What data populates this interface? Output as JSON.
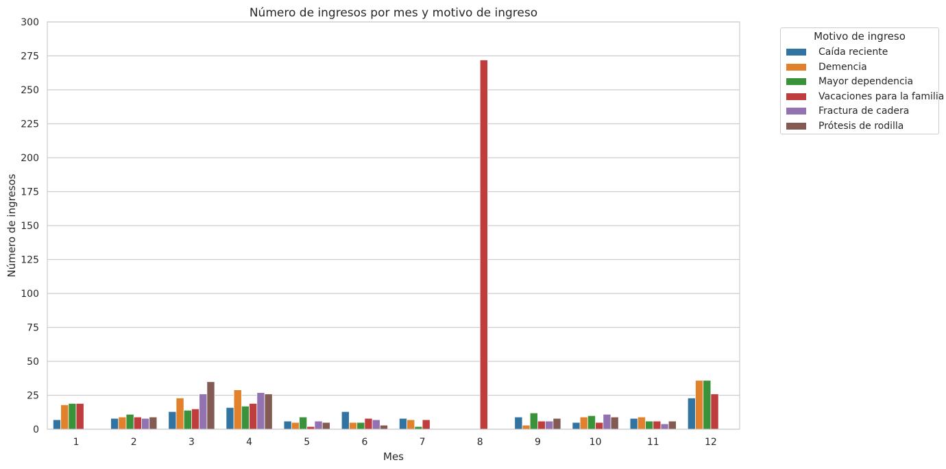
{
  "chart_data": {
    "type": "bar",
    "title": "Número de ingresos por mes y motivo de ingreso",
    "xlabel": "Mes",
    "ylabel": "Número de ingresos",
    "ylim": [
      0,
      300
    ],
    "yticks": [
      "0",
      "25",
      "50",
      "75",
      "100",
      "125",
      "150",
      "175",
      "200",
      "225",
      "250",
      "275",
      "300"
    ],
    "categories": [
      "1",
      "2",
      "3",
      "4",
      "5",
      "6",
      "7",
      "8",
      "9",
      "10",
      "11",
      "12"
    ],
    "grid": "horizontal",
    "legend": {
      "title": "Motivo de ingreso",
      "placement": "outside-right"
    },
    "series": [
      {
        "name": "Caída reciente",
        "color": "#3274a1",
        "values": [
          7,
          8,
          13,
          16,
          6,
          13,
          8,
          0,
          9,
          5,
          8,
          23
        ]
      },
      {
        "name": "Demencia",
        "color": "#e1812c",
        "values": [
          18,
          9,
          23,
          29,
          5,
          5,
          7,
          0,
          3,
          9,
          9,
          36
        ]
      },
      {
        "name": "Mayor dependencia",
        "color": "#3a923a",
        "values": [
          19,
          11,
          14,
          17,
          9,
          5,
          2,
          0,
          12,
          10,
          6,
          36
        ]
      },
      {
        "name": "Vacaciones para la familia",
        "color": "#c03d3e",
        "values": [
          19,
          9,
          15,
          19,
          2,
          8,
          7,
          272,
          6,
          5,
          6,
          26
        ]
      },
      {
        "name": "Fractura de cadera",
        "color": "#9372b2",
        "values": [
          0,
          8,
          26,
          27,
          6,
          7,
          0,
          0,
          6,
          11,
          4,
          0
        ]
      },
      {
        "name": "Prótesis de rodilla",
        "color": "#845b53",
        "values": [
          0,
          9,
          35,
          26,
          5,
          3,
          0,
          0,
          8,
          9,
          6,
          0
        ]
      }
    ]
  }
}
